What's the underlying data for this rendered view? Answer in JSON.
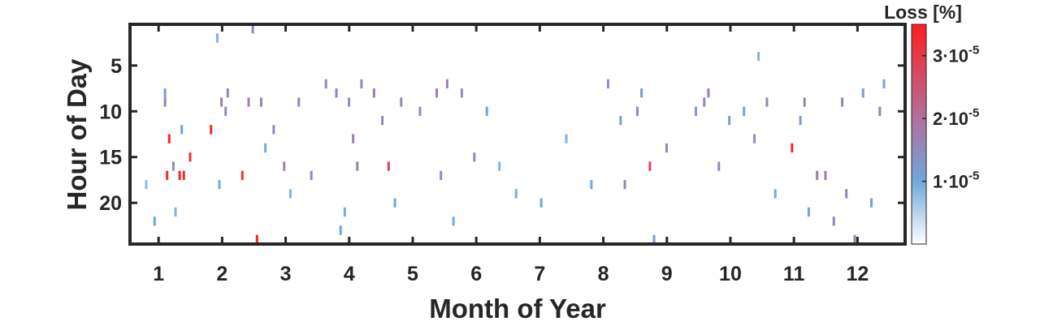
{
  "chart_data": {
    "type": "heatmap",
    "title": "",
    "xlabel": "Month of Year",
    "ylabel": "Hour of Day",
    "xlim": [
      0.55,
      12.75
    ],
    "ylim": [
      0.5,
      24.5
    ],
    "y_reversed": true,
    "x_ticks": [
      "1",
      "2",
      "3",
      "4",
      "5",
      "6",
      "7",
      "8",
      "9",
      "10",
      "11",
      "12"
    ],
    "y_ticks": [
      "5",
      "10",
      "15",
      "20"
    ],
    "colorbar": {
      "label": "Loss [%]",
      "min": 0,
      "max": 3.5e-05,
      "ticks": [
        {
          "value": 1e-05,
          "mantissa": "1·10",
          "exp": "-5"
        },
        {
          "value": 2e-05,
          "mantissa": "2·10",
          "exp": "-5"
        },
        {
          "value": 3e-05,
          "mantissa": "3·10",
          "exp": "-5"
        }
      ],
      "colors": [
        "#ffffff",
        "#6fa6db",
        "#b0709f",
        "#ff1f1f"
      ]
    },
    "grid": false,
    "note": "dense daily heatmap; representative sample of cells listed as [day_of_year, hour, loss]",
    "cells": [
      [
        18,
        8,
        1.4e-05
      ],
      [
        18,
        9,
        2e-05
      ],
      [
        20,
        13,
        3.4e-05
      ],
      [
        19,
        17,
        3.3e-05
      ],
      [
        22,
        16,
        1.8e-05
      ],
      [
        25,
        17,
        3.5e-05
      ],
      [
        27,
        17,
        3.3e-05
      ],
      [
        26,
        12,
        1.2e-05
      ],
      [
        30,
        15,
        3.3e-05
      ],
      [
        23,
        21,
        1e-05
      ],
      [
        13,
        22,
        1.2e-05
      ],
      [
        9,
        18,
        9e-06
      ],
      [
        40,
        12,
        3.5e-05
      ],
      [
        45,
        9,
        2e-05
      ],
      [
        47,
        10,
        1.9e-05
      ],
      [
        48,
        8,
        1.8e-05
      ],
      [
        44,
        18,
        1.1e-05
      ],
      [
        43,
        2,
        1e-05
      ],
      [
        55,
        17,
        3.2e-05
      ],
      [
        58,
        9,
        2e-05
      ],
      [
        60,
        1,
        2e-05
      ],
      [
        62,
        24,
        3.5e-05
      ],
      [
        64,
        9,
        1.9e-05
      ],
      [
        66,
        14,
        1.1e-05
      ],
      [
        70,
        12,
        1.8e-05
      ],
      [
        75,
        16,
        2e-05
      ],
      [
        78,
        19,
        1e-05
      ],
      [
        82,
        9,
        1.8e-05
      ],
      [
        88,
        17,
        1.9e-05
      ],
      [
        95,
        7,
        1.8e-05
      ],
      [
        100,
        8,
        1.9e-05
      ],
      [
        102,
        23,
        1.2e-05
      ],
      [
        104,
        21,
        1.1e-05
      ],
      [
        106,
        9,
        1.6e-05
      ],
      [
        108,
        13,
        2e-05
      ],
      [
        110,
        16,
        1.9e-05
      ],
      [
        112,
        7,
        1.9e-05
      ],
      [
        118,
        8,
        2e-05
      ],
      [
        122,
        11,
        1.9e-05
      ],
      [
        125,
        16,
        3e-05
      ],
      [
        128,
        20,
        1.2e-05
      ],
      [
        131,
        9,
        1.9e-05
      ],
      [
        140,
        10,
        1.7e-05
      ],
      [
        148,
        8,
        2e-05
      ],
      [
        150,
        17,
        1.8e-05
      ],
      [
        153,
        7,
        1.9e-05
      ],
      [
        156,
        22,
        1.1e-05
      ],
      [
        160,
        8,
        1.7e-05
      ],
      [
        166,
        15,
        1.7e-05
      ],
      [
        172,
        10,
        1.2e-05
      ],
      [
        178,
        16,
        1e-05
      ],
      [
        186,
        19,
        1.1e-05
      ],
      [
        198,
        20,
        1.2e-05
      ],
      [
        210,
        13,
        1e-05
      ],
      [
        222,
        18,
        1.1e-05
      ],
      [
        230,
        7,
        1.6e-05
      ],
      [
        236,
        11,
        1.4e-05
      ],
      [
        238,
        18,
        1.9e-05
      ],
      [
        244,
        10,
        1.9e-05
      ],
      [
        246,
        8,
        1.5e-05
      ],
      [
        250,
        16,
        3e-05
      ],
      [
        252,
        24,
        1.4e-05
      ],
      [
        258,
        14,
        1.8e-05
      ],
      [
        272,
        10,
        1.5e-05
      ],
      [
        276,
        9,
        1.9e-05
      ],
      [
        278,
        8,
        2e-05
      ],
      [
        283,
        16,
        1.7e-05
      ],
      [
        288,
        11,
        1.3e-05
      ],
      [
        295,
        10,
        1.2e-05
      ],
      [
        300,
        13,
        1.7e-05
      ],
      [
        302,
        4,
        1e-05
      ],
      [
        306,
        9,
        1.9e-05
      ],
      [
        310,
        19,
        1.1e-05
      ],
      [
        318,
        14,
        3.4e-05
      ],
      [
        322,
        11,
        1.5e-05
      ],
      [
        324,
        9,
        1.9e-05
      ],
      [
        326,
        21,
        1.3e-05
      ],
      [
        330,
        17,
        2e-05
      ],
      [
        334,
        17,
        2.1e-05
      ],
      [
        338,
        22,
        1.9e-05
      ],
      [
        342,
        9,
        1.9e-05
      ],
      [
        344,
        19,
        2e-05
      ],
      [
        348,
        24,
        2.1e-05
      ],
      [
        352,
        8,
        1.5e-05
      ],
      [
        356,
        20,
        1.3e-05
      ],
      [
        360,
        10,
        1.9e-05
      ],
      [
        362,
        7,
        1.2e-05
      ]
    ]
  }
}
